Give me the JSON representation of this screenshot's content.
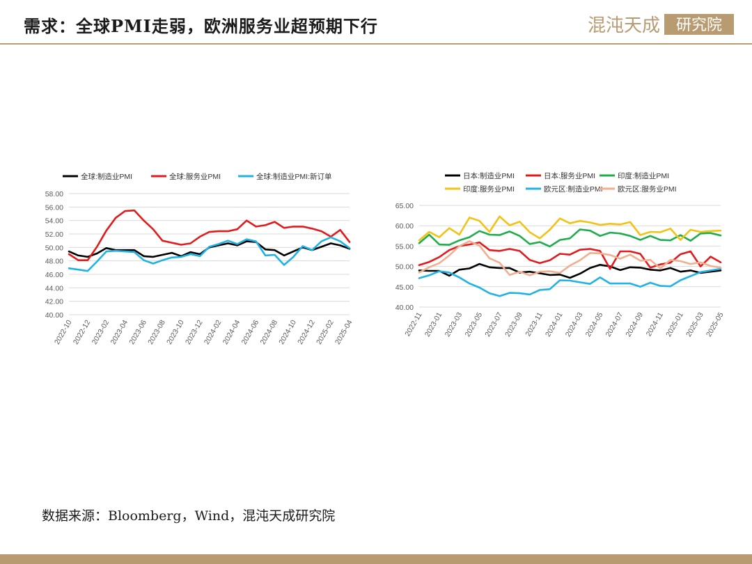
{
  "header": {
    "title": "需求：全球PMI走弱，欧洲服务业超预期下行",
    "logo_text": "混沌天成研究院"
  },
  "source": "数据来源：Bloomberg，Wind，混沌天成研究院",
  "colors": {
    "brand": "#b99b72"
  },
  "chart_data": [
    {
      "type": "line",
      "x": [
        "2022-10",
        "2022-11",
        "2022-12",
        "2023-01",
        "2023-02",
        "2023-03",
        "2023-04",
        "2023-05",
        "2023-06",
        "2023-07",
        "2023-08",
        "2023-09",
        "2023-10",
        "2023-11",
        "2023-12",
        "2024-01",
        "2024-02",
        "2024-03",
        "2024-04",
        "2024-05",
        "2024-06",
        "2024-07",
        "2024-08",
        "2024-09",
        "2024-10",
        "2024-11",
        "2024-12",
        "2025-01",
        "2025-02",
        "2025-03",
        "2025-04"
      ],
      "x_tick_labels": [
        "2022-10",
        "2022-12",
        "2023-02",
        "2023-04",
        "2023-06",
        "2023-08",
        "2023-10",
        "2023-12",
        "2024-02",
        "2024-04",
        "2024-06",
        "2024-08",
        "2024-10",
        "2024-12",
        "2025-02",
        "2025-04"
      ],
      "ylim": [
        40,
        58
      ],
      "y_ticks": [
        "40.00",
        "42.00",
        "44.00",
        "46.00",
        "48.00",
        "50.00",
        "52.00",
        "54.00",
        "56.00",
        "58.00"
      ],
      "grid": "horizontal",
      "legend_position": "top",
      "series": [
        {
          "name": "全球:制造业PMI",
          "color": "#000000",
          "values": [
            49.4,
            48.8,
            48.6,
            49.1,
            49.9,
            49.6,
            49.6,
            49.6,
            48.7,
            48.6,
            48.9,
            49.2,
            48.7,
            49.3,
            49.0,
            50.0,
            50.3,
            50.6,
            50.3,
            50.9,
            50.8,
            49.7,
            49.6,
            48.8,
            49.4,
            50.0,
            49.6,
            50.1,
            50.6,
            50.3,
            49.8
          ]
        },
        {
          "name": "全球:服务业PMI",
          "color": "#e31a1c",
          "values": [
            49.0,
            48.1,
            48.1,
            50.1,
            52.5,
            54.4,
            55.4,
            55.5,
            54.0,
            52.7,
            51.0,
            50.7,
            50.4,
            50.6,
            51.6,
            52.3,
            52.4,
            52.4,
            52.7,
            54.0,
            53.1,
            53.3,
            53.8,
            52.9,
            53.1,
            53.1,
            52.8,
            52.4,
            51.6,
            52.6,
            50.8
          ]
        },
        {
          "name": "全球:制造业PMI:新订单",
          "color": "#1fb3e5",
          "values": [
            46.9,
            46.7,
            46.5,
            47.9,
            49.4,
            49.5,
            49.4,
            49.3,
            48.1,
            47.6,
            48.1,
            48.5,
            48.6,
            49.0,
            48.7,
            50.1,
            50.5,
            51.0,
            50.5,
            51.2,
            50.9,
            48.8,
            48.9,
            47.4,
            48.6,
            50.2,
            49.6,
            50.9,
            51.5,
            50.9,
            49.9
          ]
        }
      ]
    },
    {
      "type": "line",
      "x": [
        "2022-11",
        "2022-12",
        "2023-01",
        "2023-02",
        "2023-03",
        "2023-04",
        "2023-05",
        "2023-06",
        "2023-07",
        "2023-08",
        "2023-09",
        "2023-10",
        "2023-11",
        "2023-12",
        "2024-01",
        "2024-02",
        "2024-03",
        "2024-04",
        "2024-05",
        "2024-06",
        "2024-07",
        "2024-08",
        "2024-09",
        "2024-10",
        "2024-11",
        "2024-12",
        "2025-01",
        "2025-02",
        "2025-03",
        "2025-04",
        "2025-05"
      ],
      "x_tick_labels": [
        "2022-11",
        "2023-01",
        "2023-03",
        "2023-05",
        "2023-07",
        "2023-09",
        "2023-11",
        "2024-01",
        "2024-03",
        "2024-05",
        "2024-07",
        "2024-09",
        "2024-11",
        "2025-01",
        "2025-03",
        "2025-05"
      ],
      "ylim": [
        40,
        65
      ],
      "y_ticks": [
        "40.00",
        "45.00",
        "50.00",
        "55.00",
        "60.00",
        "65.00"
      ],
      "grid": "horizontal",
      "legend_position": "top",
      "series": [
        {
          "name": "日本:制造业PMI",
          "color": "#000000",
          "values": [
            49.0,
            48.9,
            48.9,
            47.7,
            49.2,
            49.5,
            50.6,
            49.8,
            49.6,
            49.6,
            48.5,
            48.7,
            48.3,
            47.9,
            48.0,
            47.2,
            48.2,
            49.6,
            50.4,
            50.0,
            49.1,
            49.8,
            49.7,
            49.2,
            49.0,
            49.6,
            48.7,
            49.0,
            48.4,
            48.7,
            49.0
          ]
        },
        {
          "name": "日本:服务业PMI",
          "color": "#e31a1c",
          "values": [
            50.3,
            51.1,
            52.3,
            54.0,
            55.0,
            55.4,
            55.9,
            54.0,
            53.8,
            54.3,
            53.8,
            51.6,
            50.8,
            51.5,
            53.1,
            52.9,
            54.1,
            54.3,
            53.8,
            49.4,
            53.7,
            53.7,
            53.1,
            49.7,
            50.5,
            50.9,
            53.0,
            53.7,
            50.0,
            52.4,
            51.0
          ]
        },
        {
          "name": "印度:制造业PMI",
          "color": "#1fad4c",
          "values": [
            55.7,
            57.8,
            55.4,
            55.3,
            56.4,
            57.2,
            58.7,
            57.8,
            57.7,
            58.6,
            57.5,
            55.5,
            56.0,
            54.9,
            56.5,
            56.9,
            59.1,
            58.8,
            57.5,
            58.3,
            58.1,
            57.5,
            56.5,
            57.5,
            56.5,
            56.4,
            57.7,
            56.3,
            58.1,
            58.2,
            57.6
          ]
        },
        {
          "name": "印度:服务业PMI",
          "color": "#f2c215",
          "values": [
            56.4,
            58.5,
            57.2,
            59.4,
            57.8,
            62.0,
            61.2,
            58.5,
            62.3,
            60.1,
            61.0,
            58.4,
            56.9,
            59.0,
            61.8,
            60.6,
            61.2,
            60.8,
            60.2,
            60.5,
            60.3,
            60.9,
            57.7,
            58.5,
            58.4,
            59.3,
            56.5,
            59.0,
            58.5,
            58.7,
            58.8
          ]
        },
        {
          "name": "欧元区:制造业PMI",
          "color": "#1fb3e5",
          "values": [
            47.1,
            47.8,
            48.8,
            48.5,
            47.3,
            45.8,
            44.8,
            43.4,
            42.7,
            43.5,
            43.4,
            43.1,
            44.2,
            44.4,
            46.6,
            46.5,
            46.1,
            45.7,
            47.3,
            45.8,
            45.8,
            45.8,
            45.0,
            46.0,
            45.2,
            45.1,
            46.6,
            47.6,
            48.6,
            49.0,
            49.4
          ]
        },
        {
          "name": "欧元区:服务业PMI",
          "color": "#f2ae8f",
          "values": [
            48.5,
            49.8,
            50.8,
            52.7,
            55.0,
            56.2,
            55.1,
            52.0,
            50.9,
            47.9,
            48.7,
            47.8,
            48.7,
            48.8,
            48.4,
            50.2,
            51.5,
            53.3,
            53.2,
            52.8,
            51.9,
            52.9,
            51.4,
            51.6,
            49.5,
            51.6,
            51.3,
            50.6,
            51.0,
            50.1,
            49.7
          ]
        }
      ]
    }
  ]
}
